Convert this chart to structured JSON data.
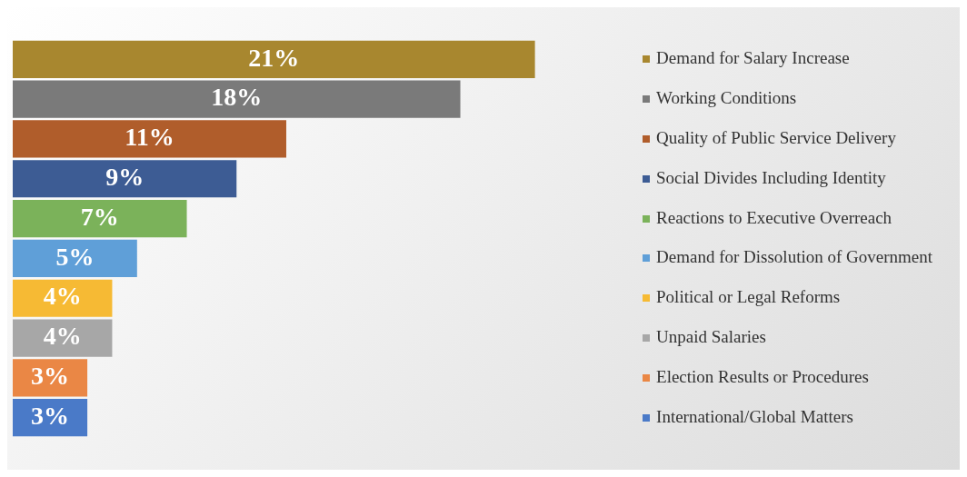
{
  "chart_data": {
    "type": "bar",
    "orientation": "horizontal",
    "categories": [
      "Demand for Salary Increase",
      "Working Conditions",
      "Quality of Public Service Delivery",
      "Social Divides Including Identity",
      "Reactions to Executive Overreach",
      "Demand for Dissolution of Government",
      "Political or Legal Reforms",
      "Unpaid Salaries",
      "Election Results or Procedures",
      "International/Global Matters"
    ],
    "values": [
      21,
      18,
      11,
      9,
      7,
      5,
      4,
      4,
      3,
      3
    ],
    "value_labels": [
      "21%",
      "18%",
      "11%",
      "9%",
      "7%",
      "5%",
      "4%",
      "4%",
      "3%",
      "3%"
    ],
    "colors": [
      "#a8872f",
      "#7a7a7a",
      "#b05d2b",
      "#3d5c94",
      "#7bb25a",
      "#5f9fd8",
      "#f6ba34",
      "#a7a7a7",
      "#ea8745",
      "#4a7ac8"
    ],
    "tick_labels": "y"
  }
}
